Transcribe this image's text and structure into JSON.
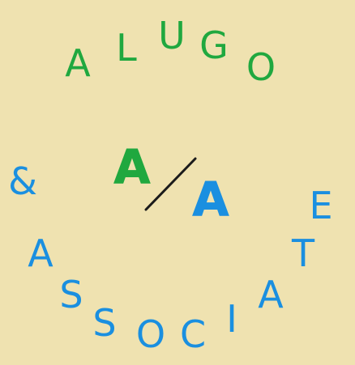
{
  "logo": {
    "top_letters": [
      "A",
      "L",
      "U",
      "G",
      "O"
    ],
    "ampersand": "&",
    "bottom_letters": [
      "A",
      "S",
      "S",
      "O",
      "C",
      "I",
      "A",
      "T",
      "E"
    ],
    "monogram_left": "A",
    "monogram_right": "A",
    "colors": {
      "background": "#efe2b0",
      "green": "#20a83f",
      "blue": "#1a8fe0",
      "slash": "#1b1b1b"
    }
  }
}
